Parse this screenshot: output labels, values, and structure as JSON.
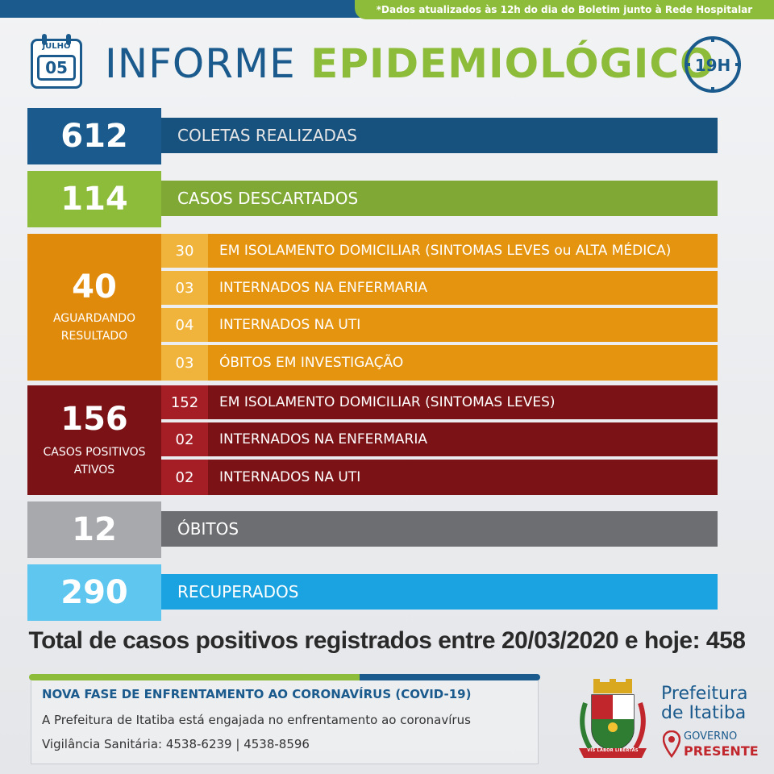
{
  "header": {
    "update_note": "*Dados atualizados às 12h do dia do Boletim junto à Rede Hospitalar",
    "calendar_month": "JULHO",
    "calendar_day": "05",
    "title_part1": "INFORME",
    "title_part2": "EPIDEMIOLÓGICO",
    "time": "19H"
  },
  "stats": {
    "coletas": {
      "value": "612",
      "label": "COLETAS REALIZADAS",
      "color": "#1a5a8c"
    },
    "descartados": {
      "value": "114",
      "label": "CASOS DESCARTADOS",
      "color": "#8dbb3a"
    },
    "aguardando": {
      "value": "40",
      "sublabel_line1": "AGUARDANDO",
      "sublabel_line2": "RESULTADO",
      "color": "#e08a0c",
      "items": [
        {
          "value": "30",
          "label": "EM ISOLAMENTO DOMICILIAR (SINTOMAS LEVES ou ALTA MÉDICA)"
        },
        {
          "value": "03",
          "label": "INTERNADOS NA ENFERMARIA"
        },
        {
          "value": "04",
          "label": "INTERNADOS NA UTI"
        },
        {
          "value": "03",
          "label": "ÓBITOS EM INVESTIGAÇÃO"
        }
      ]
    },
    "positivos": {
      "value": "156",
      "sublabel_line1": "CASOS POSITIVOS",
      "sublabel_line2": "ATIVOS",
      "color": "#7a1216",
      "items": [
        {
          "value": "152",
          "label": "EM ISOLAMENTO DOMICILIAR (SINTOMAS LEVES)"
        },
        {
          "value": "02",
          "label": "INTERNADOS NA ENFERMARIA"
        },
        {
          "value": "02",
          "label": "INTERNADOS NA UTI"
        }
      ]
    },
    "obitos": {
      "value": "12",
      "label": "ÓBITOS",
      "color": "#6d6e71"
    },
    "recuperados": {
      "value": "290",
      "label": "RECUPERADOS",
      "color": "#1aa3e0"
    }
  },
  "total_line": "Total de casos positivos registrados entre 20/03/2020 e hoje: 458",
  "info": {
    "title": "NOVA FASE DE ENFRENTAMENTO AO CORONAVÍRUS (COVID-19)",
    "line1": "A Prefeitura de Itatiba está engajada no enfrentamento ao coronavírus",
    "line2": "Vigilância Sanitária: 4538-6239 | 4538-8596"
  },
  "logo": {
    "pref_line1": "Prefeitura",
    "pref_line2": "de Itatiba",
    "gov_line1": "GOVERNO",
    "gov_line2": "PRESENTE",
    "crest_motto": "VIS LABOR LIBERTAS"
  }
}
